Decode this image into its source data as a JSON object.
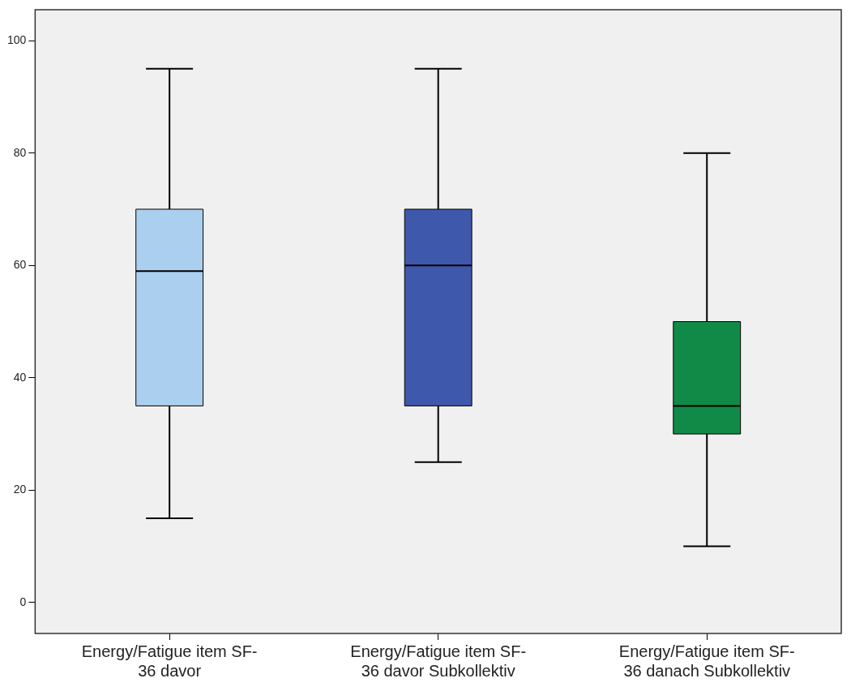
{
  "chart_data": {
    "type": "box",
    "categories": [
      "Energy/Fatigue item SF-36 davor",
      "Energy/Fatigue item SF-36 davor Subkollektiv",
      "Energy/Fatigue item SF-36 danach Subkollektiv"
    ],
    "boxes": [
      {
        "low": 15,
        "q1": 35,
        "median": 59,
        "q3": 70,
        "high": 95
      },
      {
        "low": 25,
        "q1": 35,
        "median": 60,
        "q3": 70,
        "high": 95
      },
      {
        "low": 10,
        "q1": 30,
        "median": 35,
        "q3": 50,
        "high": 80
      }
    ],
    "colors": [
      "#abcfee",
      "#3e58ac",
      "#118a48"
    ],
    "ylim": [
      -5.5,
      105.5
    ],
    "yticks": [
      0,
      20,
      40,
      60,
      80,
      100
    ]
  }
}
